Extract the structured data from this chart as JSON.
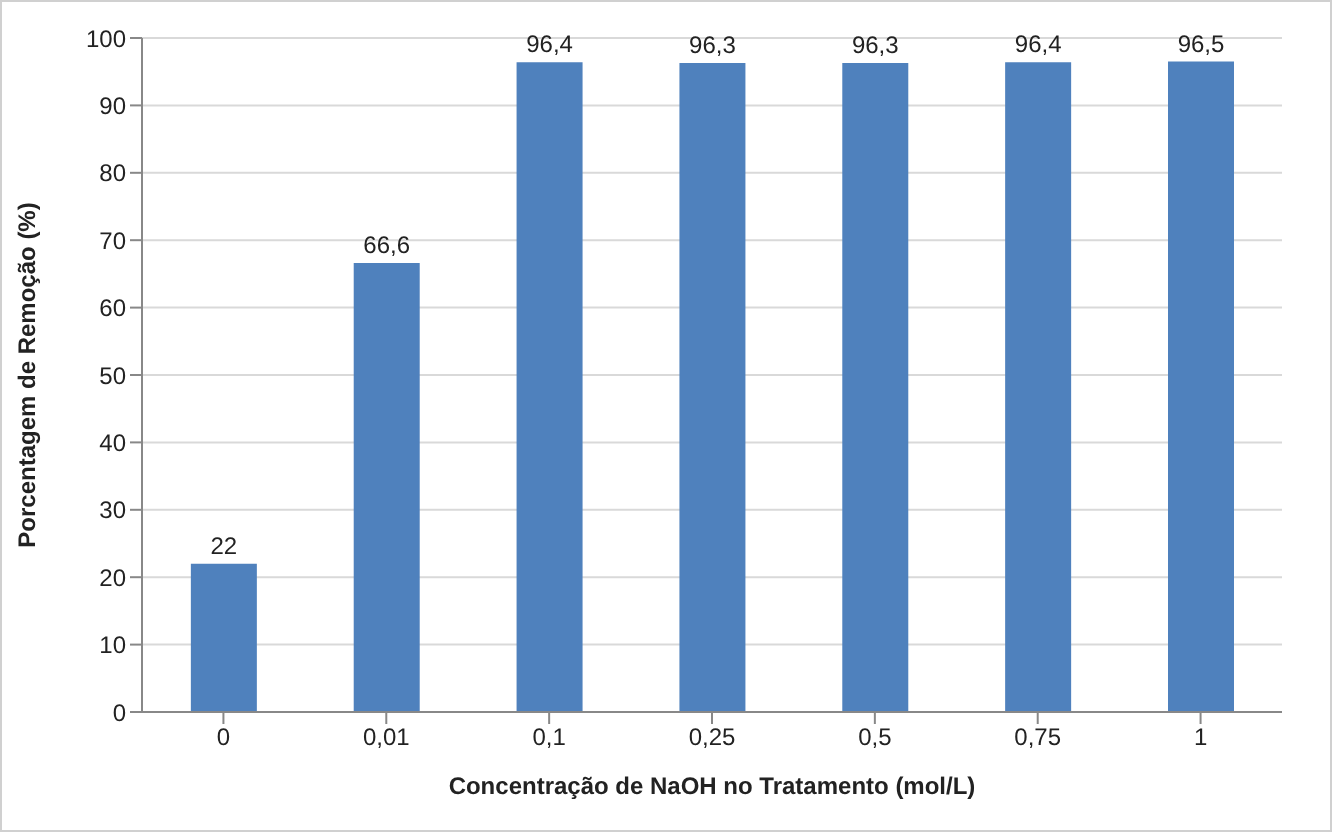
{
  "chart_data": {
    "type": "bar",
    "xlabel": "Concentração de NaOH no Tratamento (mol/L)",
    "ylabel": "Porcentagem de Remoção (%)",
    "categories": [
      "0",
      "0,01",
      "0,1",
      "0,25",
      "0,5",
      "0,75",
      "1"
    ],
    "values": [
      22,
      66.6,
      96.4,
      96.3,
      96.3,
      96.4,
      96.5
    ],
    "value_labels": [
      "22",
      "66,6",
      "96,4",
      "96,3",
      "96,3",
      "96,4",
      "96,5"
    ],
    "color": "#4f81bd",
    "ylim": [
      0,
      100
    ],
    "yticks": [
      0,
      10,
      20,
      30,
      40,
      50,
      60,
      70,
      80,
      90,
      100
    ],
    "grid": "y"
  }
}
